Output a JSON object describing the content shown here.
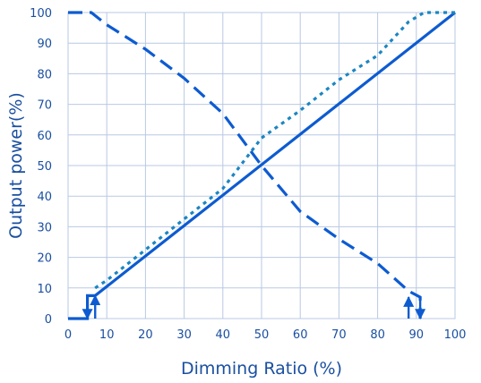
{
  "chart_data": {
    "type": "line",
    "title": "",
    "xlabel": "Dimming  Ratio (%)",
    "ylabel": "Output power(%)",
    "xlim": [
      0,
      100
    ],
    "ylim": [
      0,
      100
    ],
    "xticks": [
      0,
      10,
      20,
      30,
      40,
      50,
      60,
      70,
      80,
      90,
      100
    ],
    "yticks": [
      0,
      10,
      20,
      30,
      40,
      50,
      60,
      70,
      80,
      90,
      100
    ],
    "grid": true,
    "legend": "none",
    "series": [
      {
        "style": "solid",
        "color": "#0d5bd1",
        "points": [
          [
            0,
            0
          ],
          [
            5,
            0
          ],
          [
            5,
            7.5
          ],
          [
            7,
            7.5
          ],
          [
            100,
            100
          ]
        ]
      },
      {
        "style": "dotted",
        "color": "#1b86c2",
        "points": [
          [
            7,
            10
          ],
          [
            10,
            12.5
          ],
          [
            20,
            22.5
          ],
          [
            30,
            32.5
          ],
          [
            40,
            42.5
          ],
          [
            50,
            59
          ],
          [
            60,
            68
          ],
          [
            70,
            78
          ],
          [
            80,
            86
          ],
          [
            88,
            97
          ],
          [
            92,
            100
          ],
          [
            100,
            100
          ]
        ]
      },
      {
        "style": "dashed",
        "color": "#0d5bd1",
        "points": [
          [
            0,
            100
          ],
          [
            6,
            100
          ],
          [
            10,
            96
          ],
          [
            20,
            88
          ],
          [
            30,
            78.5
          ],
          [
            40,
            67
          ],
          [
            50,
            50
          ],
          [
            60,
            35
          ],
          [
            70,
            26
          ],
          [
            80,
            18
          ],
          [
            88,
            9
          ],
          [
            91,
            7
          ],
          [
            91,
            0
          ]
        ]
      }
    ],
    "annotations": [
      {
        "type": "arrow-down",
        "x": 5,
        "from": 7.5,
        "to": 0
      },
      {
        "type": "arrow-up",
        "x": 7,
        "from": 0,
        "to": 7.5
      },
      {
        "type": "arrow-up",
        "x": 88,
        "from": 0,
        "to": 7
      },
      {
        "type": "arrow-down",
        "x": 91,
        "from": 7,
        "to": 0
      }
    ]
  }
}
